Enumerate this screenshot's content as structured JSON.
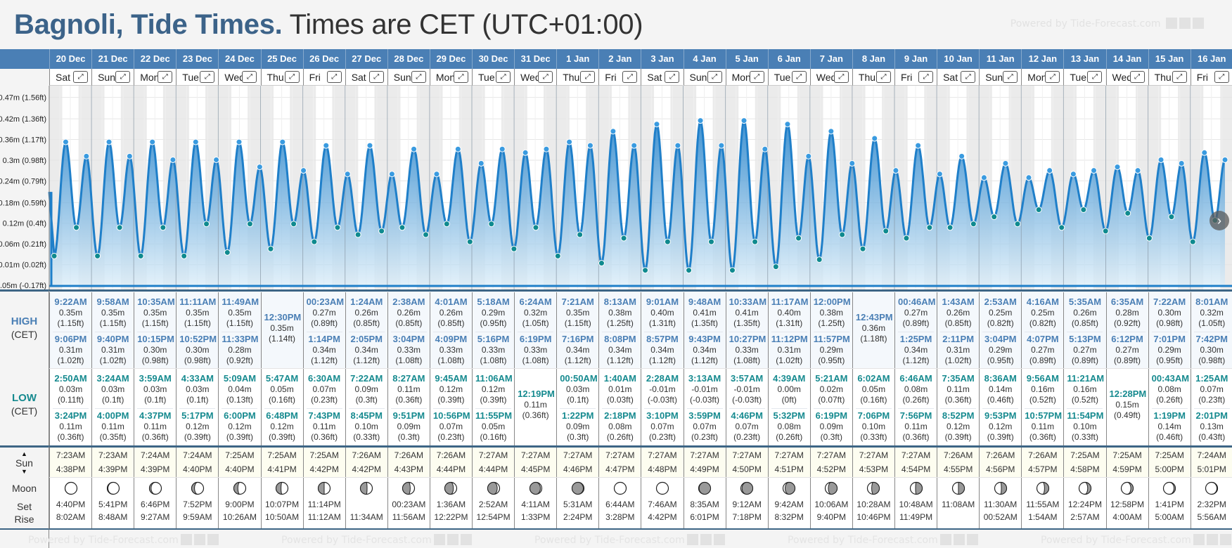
{
  "header": {
    "location": "Bagnoli, Tide Times.",
    "timezone_note": "Times are CET (UTC+01:00)",
    "powered_by": "Powered by Tide-Forecast.com"
  },
  "row_labels": {
    "high": "HIGH",
    "high_sub": "(CET)",
    "low": "LOW",
    "low_sub": "(CET)",
    "sun": "Sun",
    "moon": "Moon",
    "set": "Set",
    "rise": "Rise"
  },
  "icons": {
    "expand": "expand-arrows-icon",
    "sun_up": "triangle-up-icon",
    "sun_down": "triangle-down-icon",
    "next": "chevron-right-icon"
  },
  "colors": {
    "header_blue": "#4a7fb5",
    "title_blue": "#3c6389",
    "high_time": "#4a7fb5",
    "low_time": "#168a8f",
    "tide_line": "#1f7fc9",
    "low_dot": "#0f8a8f",
    "high_dot": "#3a9be0"
  },
  "chart_data": {
    "type": "area",
    "title": "Tide height",
    "ylabel": "Height",
    "y_tick_labels": [
      "0.47m (1.56ft)",
      "0.42m (1.36ft)",
      "0.36m (1.17ft)",
      "0.3m (0.98ft)",
      "0.24m (0.79ft)",
      "0.18m (0.59ft)",
      "0.12m (0.4ft)",
      "0.06m (0.21ft)",
      "0.01m (0.02ft)",
      "-0.05m (-0.17ft)"
    ],
    "y_ticks": [
      0.475,
      0.415,
      0.357,
      0.299,
      0.241,
      0.18,
      0.122,
      0.064,
      0.006,
      -0.052
    ],
    "ylim": [
      -0.052,
      0.5
    ],
    "grid": true,
    "note": "extremes plotted from the tide table below"
  },
  "days": [
    {
      "date": "20 Dec",
      "dow": "Sat",
      "high": [
        {
          "time": "9:22AM",
          "m": "0.35m",
          "ft": "(1.15ft)"
        },
        {
          "time": "9:06PM",
          "m": "0.31m",
          "ft": "(1.02ft)"
        }
      ],
      "low": [
        {
          "time": "2:50AM",
          "m": "0.03m",
          "ft": "(0.11ft)"
        },
        {
          "time": "3:24PM",
          "m": "0.11m",
          "ft": "(0.36ft)"
        }
      ],
      "sunrise": "7:23AM",
      "sunset": "4:38PM",
      "moon_set": "4:40PM",
      "moon_rise": "8:02AM",
      "moon_phase": 0.0
    },
    {
      "date": "21 Dec",
      "dow": "Sun",
      "high": [
        {
          "time": "9:58AM",
          "m": "0.35m",
          "ft": "(1.15ft)"
        },
        {
          "time": "9:40PM",
          "m": "0.31m",
          "ft": "(1.02ft)"
        }
      ],
      "low": [
        {
          "time": "3:24AM",
          "m": "0.03m",
          "ft": "(0.1ft)"
        },
        {
          "time": "4:00PM",
          "m": "0.11m",
          "ft": "(0.35ft)"
        }
      ],
      "sunrise": "7:23AM",
      "sunset": "4:39PM",
      "moon_set": "5:41PM",
      "moon_rise": "8:48AM",
      "moon_phase": 0.03
    },
    {
      "date": "22 Dec",
      "dow": "Mon",
      "high": [
        {
          "time": "10:35AM",
          "m": "0.35m",
          "ft": "(1.15ft)"
        },
        {
          "time": "10:15PM",
          "m": "0.30m",
          "ft": "(0.98ft)"
        }
      ],
      "low": [
        {
          "time": "3:59AM",
          "m": "0.03m",
          "ft": "(0.1ft)"
        },
        {
          "time": "4:37PM",
          "m": "0.11m",
          "ft": "(0.36ft)"
        }
      ],
      "sunrise": "7:24AM",
      "sunset": "4:39PM",
      "moon_set": "6:46PM",
      "moon_rise": "9:27AM",
      "moon_phase": 0.07
    },
    {
      "date": "23 Dec",
      "dow": "Tue",
      "high": [
        {
          "time": "11:11AM",
          "m": "0.35m",
          "ft": "(1.15ft)"
        },
        {
          "time": "10:52PM",
          "m": "0.30m",
          "ft": "(0.98ft)"
        }
      ],
      "low": [
        {
          "time": "4:33AM",
          "m": "0.03m",
          "ft": "(0.1ft)"
        },
        {
          "time": "5:17PM",
          "m": "0.12m",
          "ft": "(0.39ft)"
        }
      ],
      "sunrise": "7:24AM",
      "sunset": "4:40PM",
      "moon_set": "7:52PM",
      "moon_rise": "9:59AM",
      "moon_phase": 0.12
    },
    {
      "date": "24 Dec",
      "dow": "Wed",
      "high": [
        {
          "time": "11:49AM",
          "m": "0.35m",
          "ft": "(1.15ft)"
        },
        {
          "time": "11:33PM",
          "m": "0.28m",
          "ft": "(0.92ft)"
        }
      ],
      "low": [
        {
          "time": "5:09AM",
          "m": "0.04m",
          "ft": "(0.13ft)"
        },
        {
          "time": "6:00PM",
          "m": "0.12m",
          "ft": "(0.39ft)"
        }
      ],
      "sunrise": "7:25AM",
      "sunset": "4:40PM",
      "moon_set": "9:00PM",
      "moon_rise": "10:26AM",
      "moon_phase": 0.17
    },
    {
      "date": "25 Dec",
      "dow": "Thu",
      "high": [
        {
          "time": "12:30PM",
          "m": "0.35m",
          "ft": "(1.14ft)"
        }
      ],
      "low": [
        {
          "time": "5:47AM",
          "m": "0.05m",
          "ft": "(0.16ft)"
        },
        {
          "time": "6:48PM",
          "m": "0.12m",
          "ft": "(0.39ft)"
        }
      ],
      "sunrise": "7:25AM",
      "sunset": "4:41PM",
      "moon_set": "10:07PM",
      "moon_rise": "10:50AM",
      "moon_phase": 0.21
    },
    {
      "date": "26 Dec",
      "dow": "Fri",
      "high": [
        {
          "time": "00:23AM",
          "m": "0.27m",
          "ft": "(0.89ft)"
        },
        {
          "time": "1:14PM",
          "m": "0.34m",
          "ft": "(1.12ft)"
        }
      ],
      "low": [
        {
          "time": "6:30AM",
          "m": "0.07m",
          "ft": "(0.23ft)"
        },
        {
          "time": "7:43PM",
          "m": "0.11m",
          "ft": "(0.36ft)"
        }
      ],
      "sunrise": "7:25AM",
      "sunset": "4:42PM",
      "moon_set": "11:14PM",
      "moon_rise": "11:12AM",
      "moon_phase": 0.25
    },
    {
      "date": "27 Dec",
      "dow": "Sat",
      "high": [
        {
          "time": "1:24AM",
          "m": "0.26m",
          "ft": "(0.85ft)"
        },
        {
          "time": "2:05PM",
          "m": "0.34m",
          "ft": "(1.12ft)"
        }
      ],
      "low": [
        {
          "time": "7:22AM",
          "m": "0.09m",
          "ft": "(0.3ft)"
        },
        {
          "time": "8:45PM",
          "m": "0.10m",
          "ft": "(0.33ft)"
        }
      ],
      "sunrise": "7:26AM",
      "sunset": "4:42PM",
      "moon_set": "",
      "moon_rise": "11:34AM",
      "moon_phase": 0.28
    },
    {
      "date": "28 Dec",
      "dow": "Sun",
      "high": [
        {
          "time": "2:38AM",
          "m": "0.26m",
          "ft": "(0.85ft)"
        },
        {
          "time": "3:04PM",
          "m": "0.33m",
          "ft": "(1.08ft)"
        }
      ],
      "low": [
        {
          "time": "8:27AM",
          "m": "0.11m",
          "ft": "(0.36ft)"
        },
        {
          "time": "9:51PM",
          "m": "0.09m",
          "ft": "(0.3ft)"
        }
      ],
      "sunrise": "7:26AM",
      "sunset": "4:43PM",
      "moon_set": "00:23AM",
      "moon_rise": "11:56AM",
      "moon_phase": 0.32
    },
    {
      "date": "29 Dec",
      "dow": "Mon",
      "high": [
        {
          "time": "4:01AM",
          "m": "0.26m",
          "ft": "(0.85ft)"
        },
        {
          "time": "4:09PM",
          "m": "0.33m",
          "ft": "(1.08ft)"
        }
      ],
      "low": [
        {
          "time": "9:45AM",
          "m": "0.12m",
          "ft": "(0.39ft)"
        },
        {
          "time": "10:56PM",
          "m": "0.07m",
          "ft": "(0.23ft)"
        }
      ],
      "sunrise": "7:26AM",
      "sunset": "4:44PM",
      "moon_set": "1:36AM",
      "moon_rise": "12:22PM",
      "moon_phase": 0.36
    },
    {
      "date": "30 Dec",
      "dow": "Tue",
      "high": [
        {
          "time": "5:18AM",
          "m": "0.29m",
          "ft": "(0.95ft)"
        },
        {
          "time": "5:16PM",
          "m": "0.33m",
          "ft": "(1.08ft)"
        }
      ],
      "low": [
        {
          "time": "11:06AM",
          "m": "0.12m",
          "ft": "(0.39ft)"
        },
        {
          "time": "11:55PM",
          "m": "0.05m",
          "ft": "(0.16ft)"
        }
      ],
      "sunrise": "7:27AM",
      "sunset": "4:44PM",
      "moon_set": "2:52AM",
      "moon_rise": "12:54PM",
      "moon_phase": 0.4
    },
    {
      "date": "31 Dec",
      "dow": "Wed",
      "high": [
        {
          "time": "6:24AM",
          "m": "0.32m",
          "ft": "(1.05ft)"
        },
        {
          "time": "6:19PM",
          "m": "0.33m",
          "ft": "(1.08ft)"
        }
      ],
      "low": [
        {
          "time": "12:19PM",
          "m": "0.11m",
          "ft": "(0.36ft)"
        }
      ],
      "sunrise": "7:27AM",
      "sunset": "4:45PM",
      "moon_set": "4:11AM",
      "moon_rise": "1:33PM",
      "moon_phase": 0.44
    },
    {
      "date": "1 Jan",
      "dow": "Thu",
      "high": [
        {
          "time": "7:21AM",
          "m": "0.35m",
          "ft": "(1.15ft)"
        },
        {
          "time": "7:16PM",
          "m": "0.34m",
          "ft": "(1.12ft)"
        }
      ],
      "low": [
        {
          "time": "00:50AM",
          "m": "0.03m",
          "ft": "(0.1ft)"
        },
        {
          "time": "1:22PM",
          "m": "0.09m",
          "ft": "(0.3ft)"
        }
      ],
      "sunrise": "7:27AM",
      "sunset": "4:46PM",
      "moon_set": "5:31AM",
      "moon_rise": "2:24PM",
      "moon_phase": 0.47
    },
    {
      "date": "2 Jan",
      "dow": "Fri",
      "high": [
        {
          "time": "8:13AM",
          "m": "0.38m",
          "ft": "(1.25ft)"
        },
        {
          "time": "8:08PM",
          "m": "0.34m",
          "ft": "(1.12ft)"
        }
      ],
      "low": [
        {
          "time": "1:40AM",
          "m": "0.01m",
          "ft": "(0.03ft)"
        },
        {
          "time": "2:18PM",
          "m": "0.08m",
          "ft": "(0.26ft)"
        }
      ],
      "sunrise": "7:27AM",
      "sunset": "4:47PM",
      "moon_set": "6:44AM",
      "moon_rise": "3:28PM",
      "moon_phase": 0.49
    },
    {
      "date": "3 Jan",
      "dow": "Sat",
      "high": [
        {
          "time": "9:01AM",
          "m": "0.40m",
          "ft": "(1.31ft)"
        },
        {
          "time": "8:57PM",
          "m": "0.34m",
          "ft": "(1.12ft)"
        }
      ],
      "low": [
        {
          "time": "2:28AM",
          "m": "-0.01m",
          "ft": "(-0.03ft)"
        },
        {
          "time": "3:10PM",
          "m": "0.07m",
          "ft": "(0.23ft)"
        }
      ],
      "sunrise": "7:27AM",
      "sunset": "4:48PM",
      "moon_set": "7:46AM",
      "moon_rise": "4:42PM",
      "moon_phase": 0.5
    },
    {
      "date": "4 Jan",
      "dow": "Sun",
      "high": [
        {
          "time": "9:48AM",
          "m": "0.41m",
          "ft": "(1.35ft)"
        },
        {
          "time": "9:43PM",
          "m": "0.34m",
          "ft": "(1.12ft)"
        }
      ],
      "low": [
        {
          "time": "3:13AM",
          "m": "-0.01m",
          "ft": "(-0.03ft)"
        },
        {
          "time": "3:59PM",
          "m": "0.07m",
          "ft": "(0.23ft)"
        }
      ],
      "sunrise": "7:27AM",
      "sunset": "4:49PM",
      "moon_set": "8:35AM",
      "moon_rise": "6:01PM",
      "moon_phase": 0.52
    },
    {
      "date": "5 Jan",
      "dow": "Mon",
      "high": [
        {
          "time": "10:33AM",
          "m": "0.41m",
          "ft": "(1.35ft)"
        },
        {
          "time": "10:27PM",
          "m": "0.33m",
          "ft": "(1.08ft)"
        }
      ],
      "low": [
        {
          "time": "3:57AM",
          "m": "-0.01m",
          "ft": "(-0.03ft)"
        },
        {
          "time": "4:46PM",
          "m": "0.07m",
          "ft": "(0.23ft)"
        }
      ],
      "sunrise": "7:27AM",
      "sunset": "4:50PM",
      "moon_set": "9:12AM",
      "moon_rise": "7:18PM",
      "moon_phase": 0.55
    },
    {
      "date": "6 Jan",
      "dow": "Tue",
      "high": [
        {
          "time": "11:17AM",
          "m": "0.40m",
          "ft": "(1.31ft)"
        },
        {
          "time": "11:12PM",
          "m": "0.31m",
          "ft": "(1.02ft)"
        }
      ],
      "low": [
        {
          "time": "4:39AM",
          "m": "0.00m",
          "ft": "(0ft)"
        },
        {
          "time": "5:32PM",
          "m": "0.08m",
          "ft": "(0.26ft)"
        }
      ],
      "sunrise": "7:27AM",
      "sunset": "4:51PM",
      "moon_set": "9:42AM",
      "moon_rise": "8:32PM",
      "moon_phase": 0.59
    },
    {
      "date": "7 Jan",
      "dow": "Wed",
      "high": [
        {
          "time": "12:00PM",
          "m": "0.38m",
          "ft": "(1.25ft)"
        },
        {
          "time": "11:57PM",
          "m": "0.29m",
          "ft": "(0.95ft)"
        }
      ],
      "low": [
        {
          "time": "5:21AM",
          "m": "0.02m",
          "ft": "(0.07ft)"
        },
        {
          "time": "6:19PM",
          "m": "0.09m",
          "ft": "(0.3ft)"
        }
      ],
      "sunrise": "7:27AM",
      "sunset": "4:52PM",
      "moon_set": "10:06AM",
      "moon_rise": "9:40PM",
      "moon_phase": 0.63
    },
    {
      "date": "8 Jan",
      "dow": "Thu",
      "high": [
        {
          "time": "12:43PM",
          "m": "0.36m",
          "ft": "(1.18ft)"
        }
      ],
      "low": [
        {
          "time": "6:02AM",
          "m": "0.05m",
          "ft": "(0.16ft)"
        },
        {
          "time": "7:06PM",
          "m": "0.10m",
          "ft": "(0.33ft)"
        }
      ],
      "sunrise": "7:27AM",
      "sunset": "4:53PM",
      "moon_set": "10:28AM",
      "moon_rise": "10:46PM",
      "moon_phase": 0.68
    },
    {
      "date": "9 Jan",
      "dow": "Fri",
      "high": [
        {
          "time": "00:46AM",
          "m": "0.27m",
          "ft": "(0.89ft)"
        },
        {
          "time": "1:25PM",
          "m": "0.34m",
          "ft": "(1.12ft)"
        }
      ],
      "low": [
        {
          "time": "6:46AM",
          "m": "0.08m",
          "ft": "(0.26ft)"
        },
        {
          "time": "7:56PM",
          "m": "0.11m",
          "ft": "(0.36ft)"
        }
      ],
      "sunrise": "7:27AM",
      "sunset": "4:54PM",
      "moon_set": "10:48AM",
      "moon_rise": "11:49PM",
      "moon_phase": 0.72
    },
    {
      "date": "10 Jan",
      "dow": "Sat",
      "high": [
        {
          "time": "1:43AM",
          "m": "0.26m",
          "ft": "(0.85ft)"
        },
        {
          "time": "2:11PM",
          "m": "0.31m",
          "ft": "(1.02ft)"
        }
      ],
      "low": [
        {
          "time": "7:35AM",
          "m": "0.11m",
          "ft": "(0.36ft)"
        },
        {
          "time": "8:52PM",
          "m": "0.12m",
          "ft": "(0.39ft)"
        }
      ],
      "sunrise": "7:26AM",
      "sunset": "4:55PM",
      "moon_set": "11:08AM",
      "moon_rise": "",
      "moon_phase": 0.75
    },
    {
      "date": "11 Jan",
      "dow": "Sun",
      "high": [
        {
          "time": "2:53AM",
          "m": "0.25m",
          "ft": "(0.82ft)"
        },
        {
          "time": "3:04PM",
          "m": "0.29m",
          "ft": "(0.95ft)"
        }
      ],
      "low": [
        {
          "time": "8:36AM",
          "m": "0.14m",
          "ft": "(0.46ft)"
        },
        {
          "time": "9:53PM",
          "m": "0.12m",
          "ft": "(0.39ft)"
        }
      ],
      "sunrise": "7:26AM",
      "sunset": "4:56PM",
      "moon_set": "11:30AM",
      "moon_rise": "00:52AM",
      "moon_phase": 0.78
    },
    {
      "date": "12 Jan",
      "dow": "Mon",
      "high": [
        {
          "time": "4:16AM",
          "m": "0.25m",
          "ft": "(0.82ft)"
        },
        {
          "time": "4:07PM",
          "m": "0.27m",
          "ft": "(0.89ft)"
        }
      ],
      "low": [
        {
          "time": "9:56AM",
          "m": "0.16m",
          "ft": "(0.52ft)"
        },
        {
          "time": "10:57PM",
          "m": "0.11m",
          "ft": "(0.36ft)"
        }
      ],
      "sunrise": "7:26AM",
      "sunset": "4:57PM",
      "moon_set": "11:55AM",
      "moon_rise": "1:54AM",
      "moon_phase": 0.82
    },
    {
      "date": "13 Jan",
      "dow": "Tue",
      "high": [
        {
          "time": "5:35AM",
          "m": "0.26m",
          "ft": "(0.85ft)"
        },
        {
          "time": "5:13PM",
          "m": "0.27m",
          "ft": "(0.89ft)"
        }
      ],
      "low": [
        {
          "time": "11:21AM",
          "m": "0.16m",
          "ft": "(0.52ft)"
        },
        {
          "time": "11:54PM",
          "m": "0.10m",
          "ft": "(0.33ft)"
        }
      ],
      "sunrise": "7:25AM",
      "sunset": "4:58PM",
      "moon_set": "12:24PM",
      "moon_rise": "2:57AM",
      "moon_phase": 0.86
    },
    {
      "date": "14 Jan",
      "dow": "Wed",
      "high": [
        {
          "time": "6:35AM",
          "m": "0.28m",
          "ft": "(0.92ft)"
        },
        {
          "time": "6:12PM",
          "m": "0.27m",
          "ft": "(0.89ft)"
        }
      ],
      "low": [
        {
          "time": "12:28PM",
          "m": "0.15m",
          "ft": "(0.49ft)"
        }
      ],
      "sunrise": "7:25AM",
      "sunset": "4:59PM",
      "moon_set": "12:58PM",
      "moon_rise": "4:00AM",
      "moon_phase": 0.9
    },
    {
      "date": "15 Jan",
      "dow": "Thu",
      "high": [
        {
          "time": "7:22AM",
          "m": "0.30m",
          "ft": "(0.98ft)"
        },
        {
          "time": "7:01PM",
          "m": "0.29m",
          "ft": "(0.95ft)"
        }
      ],
      "low": [
        {
          "time": "00:43AM",
          "m": "0.08m",
          "ft": "(0.26ft)"
        },
        {
          "time": "1:19PM",
          "m": "0.14m",
          "ft": "(0.46ft)"
        }
      ],
      "sunrise": "7:25AM",
      "sunset": "5:00PM",
      "moon_set": "1:41PM",
      "moon_rise": "5:00AM",
      "moon_phase": 0.94
    },
    {
      "date": "16 Jan",
      "dow": "Fri",
      "high": [
        {
          "time": "8:01AM",
          "m": "0.32m",
          "ft": "(1.05ft)"
        },
        {
          "time": "7:42PM",
          "m": "0.30m",
          "ft": "(0.98ft)"
        }
      ],
      "low": [
        {
          "time": "1:25AM",
          "m": "0.07m",
          "ft": "(0.23ft)"
        },
        {
          "time": "2:01PM",
          "m": "0.13m",
          "ft": "(0.43ft)"
        }
      ],
      "sunrise": "7:24AM",
      "sunset": "5:01PM",
      "moon_set": "2:32PM",
      "moon_rise": "5:56AM",
      "moon_phase": 0.97
    }
  ]
}
